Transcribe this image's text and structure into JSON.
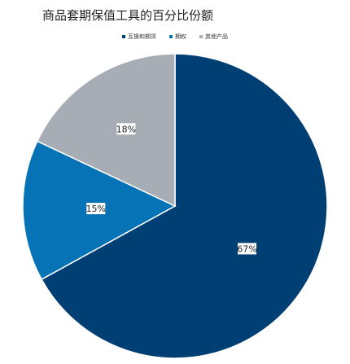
{
  "chart_data": {
    "type": "pie",
    "title": "商品套期保值工具的百分比份额",
    "categories": [
      "互换和期货",
      "期权",
      "其他产品"
    ],
    "values": [
      67,
      15,
      18
    ],
    "labels": [
      "67%",
      "15%",
      "18%"
    ],
    "colors": [
      "#003f73",
      "#0673b7",
      "#a6adb4"
    ],
    "legend_position": "top"
  }
}
